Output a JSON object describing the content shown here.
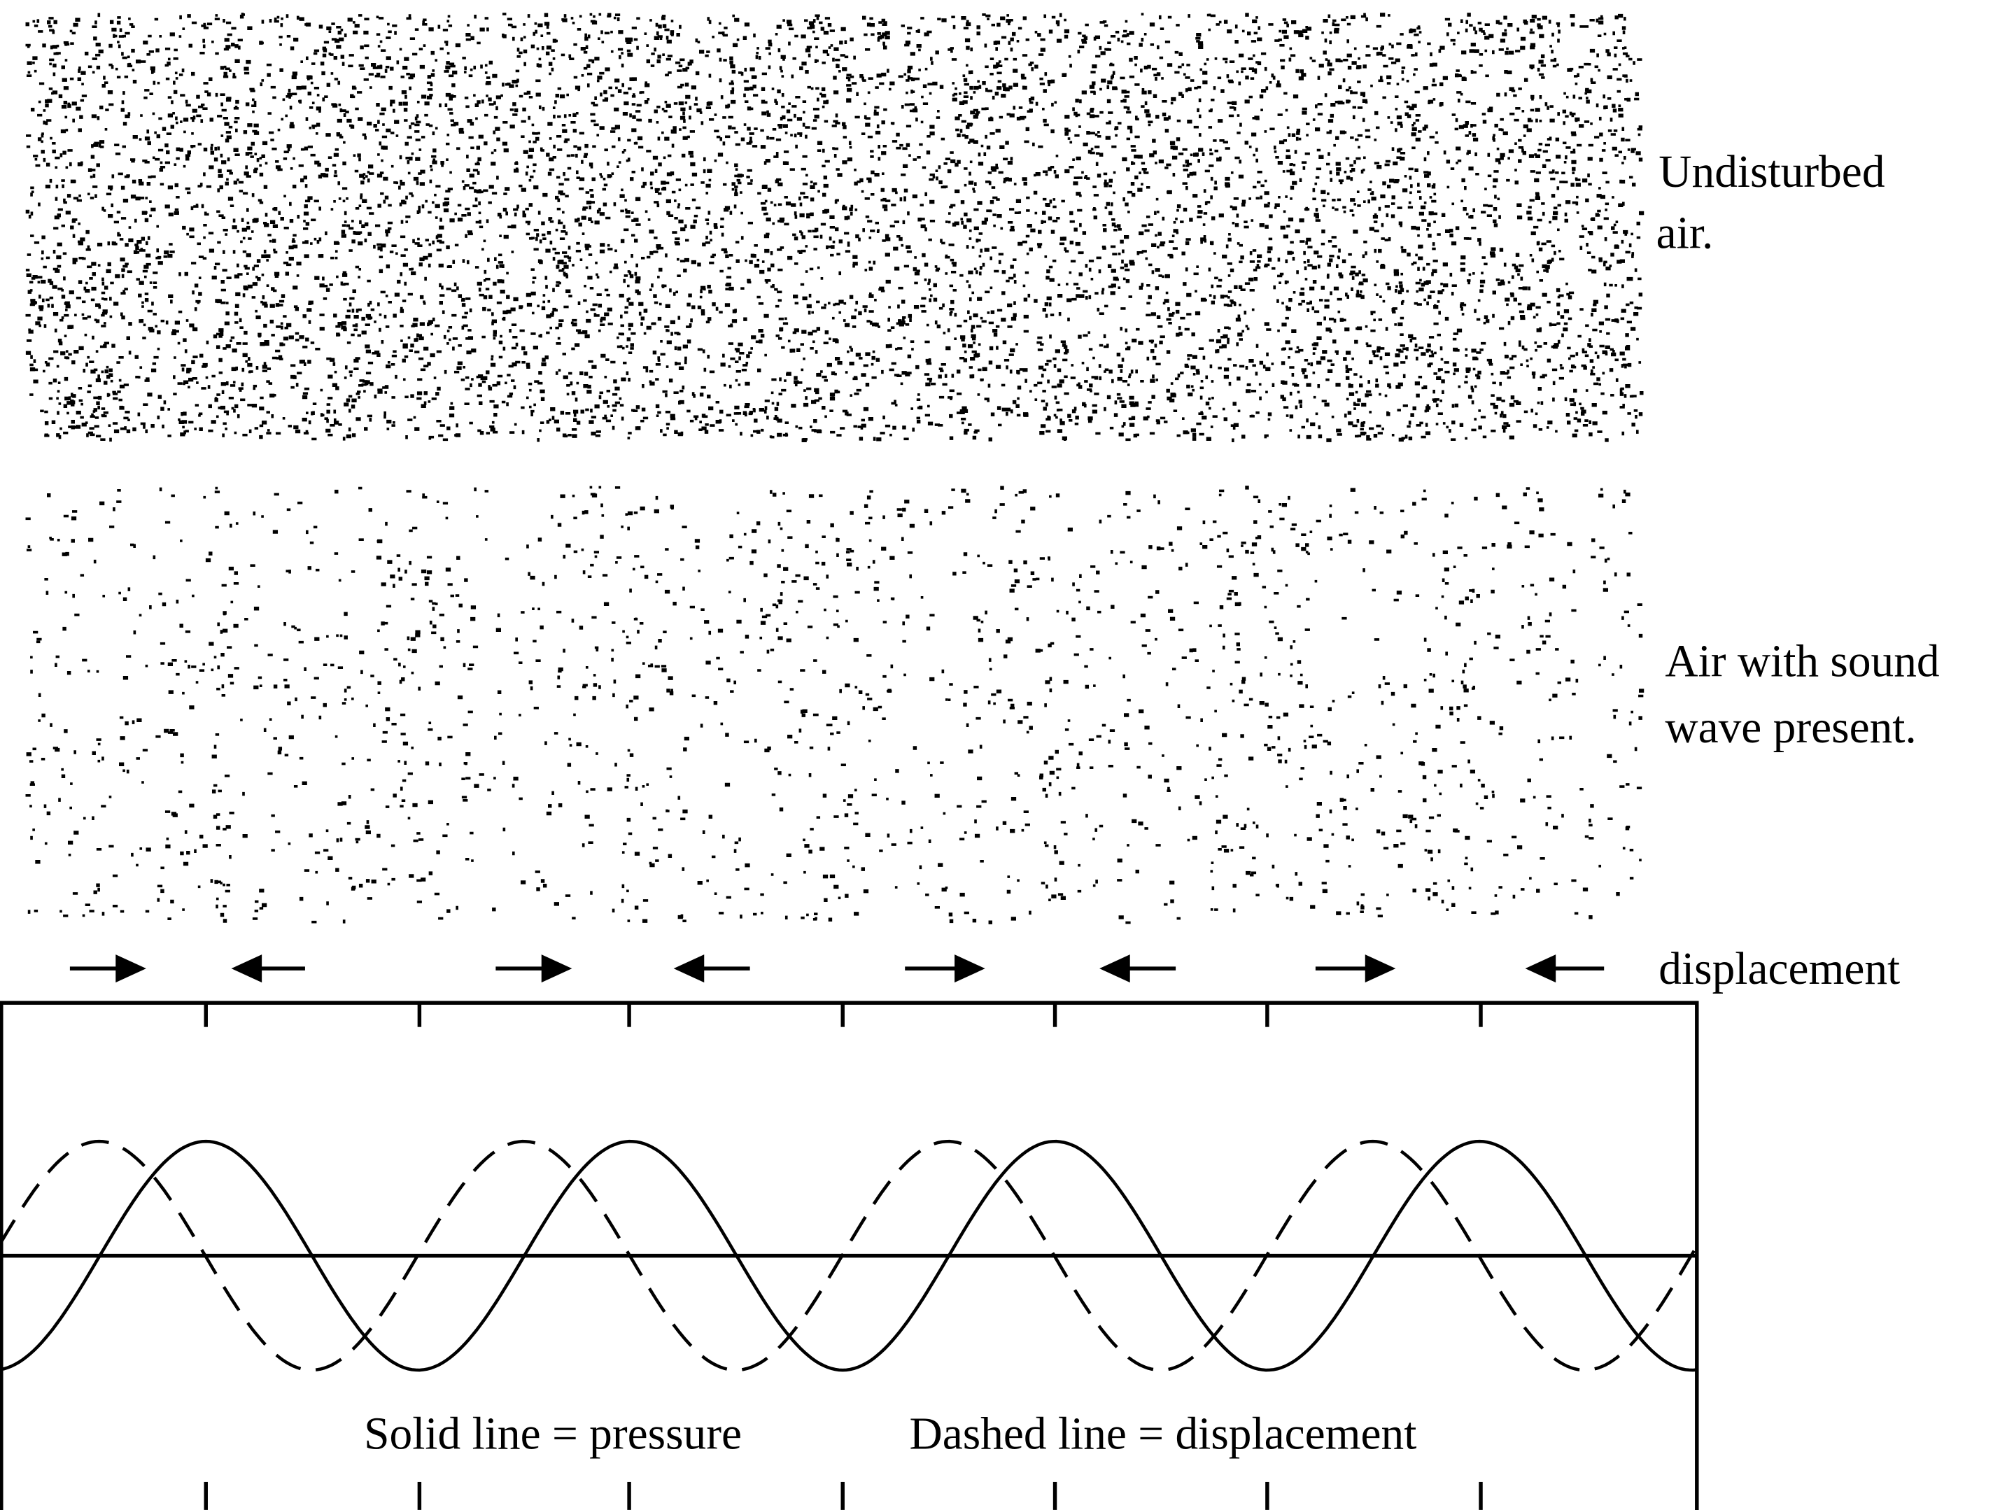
{
  "labels": {
    "undisturbed": [
      "Undisturbed",
      "air."
    ],
    "with_wave": [
      "Air with sound",
      "wave present."
    ],
    "displacement": "displacement",
    "solid_legend": "Solid line = pressure",
    "dashed_legend": "Dashed line = displacement"
  }
}
